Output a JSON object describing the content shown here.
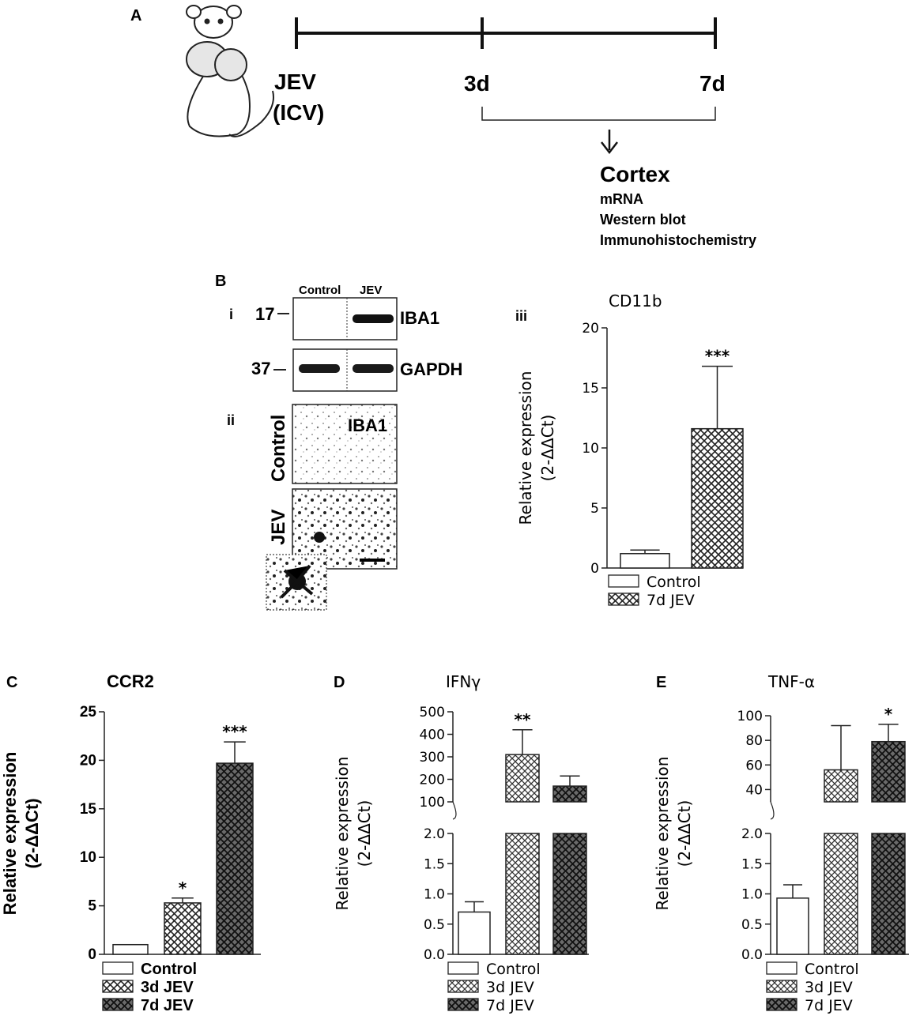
{
  "panelA": {
    "label": "A",
    "start": "JEV",
    "start2": "(ICV)",
    "t1": "3d",
    "t2": "7d",
    "target": "Cortex",
    "methods": [
      "mRNA",
      "Western blot",
      "Immunohistochemistry"
    ]
  },
  "panelB": {
    "label": "B",
    "sub_i": "i",
    "sub_ii": "ii",
    "sub_iii": "iii",
    "blot_cols": [
      "Control",
      "JEV"
    ],
    "blot_rows": [
      {
        "marker": "17",
        "protein": "IBA1"
      },
      {
        "marker": "37",
        "protein": "GAPDH"
      }
    ],
    "ihc_label": "IBA1",
    "ihc_rows": [
      "Control",
      "JEV"
    ]
  },
  "chart_data": [
    {
      "id": "B-iii",
      "type": "bar",
      "title": "CD11b",
      "ylabel": "Relative expression",
      "ylabel2": "(2-ΔΔCt)",
      "categories": [
        "Control",
        "7d JEV"
      ],
      "values": [
        1.2,
        11.6
      ],
      "errors": [
        0.3,
        5.2
      ],
      "significance": [
        "",
        "***"
      ],
      "ylim": [
        0,
        20
      ],
      "yticks": [
        0,
        5,
        10,
        15,
        20
      ],
      "legend": [
        "Control",
        "7d JEV"
      ],
      "patterns": [
        "open",
        "hatch"
      ]
    },
    {
      "id": "C",
      "panel_label": "C",
      "type": "bar",
      "title": "CCR2",
      "ylabel": "Relative expression",
      "ylabel2": "(2-ΔΔCt)",
      "categories": [
        "Control",
        "3d JEV",
        "7d JEV"
      ],
      "values": [
        1.0,
        5.3,
        19.7
      ],
      "errors": [
        0,
        0.5,
        2.2
      ],
      "significance": [
        "",
        "*",
        "***"
      ],
      "ylim": [
        0,
        25
      ],
      "yticks": [
        0,
        5,
        10,
        15,
        20,
        25
      ],
      "legend": [
        "Control",
        "3d JEV",
        "7d JEV"
      ],
      "patterns": [
        "open",
        "hatch",
        "darkhatch"
      ]
    },
    {
      "id": "D",
      "panel_label": "D",
      "type": "bar",
      "title": "IFNγ",
      "ylabel": "Relative expression",
      "ylabel2": "(2-ΔΔCt)",
      "categories": [
        "Control",
        "3d JEV",
        "7d JEV"
      ],
      "values": [
        0.7,
        310,
        170
      ],
      "errors": [
        0.17,
        110,
        45
      ],
      "significance": [
        "",
        "**",
        ""
      ],
      "broken_axis": {
        "lower": [
          0,
          2.0
        ],
        "upper": [
          100,
          500
        ]
      },
      "yticks_lower": [
        0.0,
        0.5,
        1.0,
        1.5,
        2.0
      ],
      "yticks_upper": [
        100,
        200,
        300,
        400,
        500
      ],
      "legend": [
        "Control",
        "3d JEV",
        "7d JEV"
      ],
      "patterns": [
        "open",
        "dots",
        "darkhatch"
      ]
    },
    {
      "id": "E",
      "panel_label": "E",
      "type": "bar",
      "title": "TNF-α",
      "ylabel": "Relative expression",
      "ylabel2": "(2-ΔΔCt)",
      "categories": [
        "Control",
        "3d JEV",
        "7d JEV"
      ],
      "values": [
        0.93,
        56,
        79
      ],
      "errors": [
        0.22,
        36,
        14
      ],
      "significance": [
        "",
        "",
        "*"
      ],
      "broken_axis": {
        "lower": [
          0,
          2.0
        ],
        "upper": [
          30,
          100
        ]
      },
      "yticks_lower": [
        0.0,
        0.5,
        1.0,
        1.5,
        2.0
      ],
      "yticks_upper": [
        40,
        60,
        80,
        100
      ],
      "legend": [
        "Control",
        "3d JEV",
        "7d JEV"
      ],
      "patterns": [
        "open",
        "dots",
        "darkhatch"
      ]
    }
  ]
}
